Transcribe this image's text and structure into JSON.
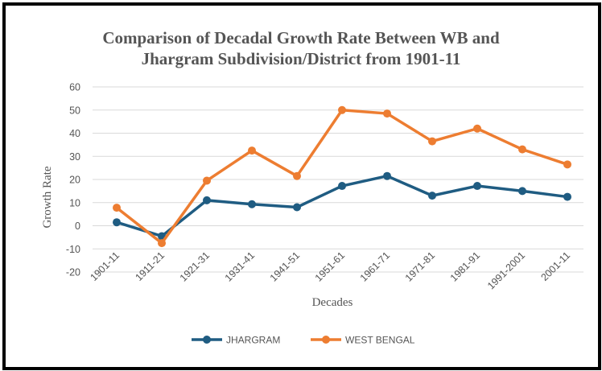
{
  "chart_data": {
    "type": "line",
    "title_line1": "Comparison of Decadal Growth Rate Between WB and",
    "title_line2": "Jhargram Subdivision/District from 1901-11",
    "xlabel": "Decades",
    "ylabel": "Growth Rate",
    "ylim": [
      -20,
      60
    ],
    "yticks": [
      -20,
      -10,
      0,
      10,
      20,
      30,
      40,
      50,
      60
    ],
    "grid": true,
    "legend_position": "bottom",
    "categories": [
      "1901-11",
      "1911-21",
      "1921-31",
      "1931-41",
      "1941-51",
      "1951-61",
      "1961-71",
      "1971-81",
      "1981-91",
      "1991-2001",
      "2001-11"
    ],
    "series": [
      {
        "name": "JHARGRAM",
        "color": "#1f5c82",
        "values": [
          1.5,
          -4.5,
          11,
          9.3,
          8,
          17.2,
          21.5,
          13,
          17.2,
          15,
          12.5
        ]
      },
      {
        "name": "WEST BENGAL",
        "color": "#ed7d31",
        "values": [
          7.8,
          -7.5,
          19.5,
          32.5,
          21.5,
          50,
          48.5,
          36.5,
          42,
          33,
          26.5
        ]
      }
    ]
  }
}
